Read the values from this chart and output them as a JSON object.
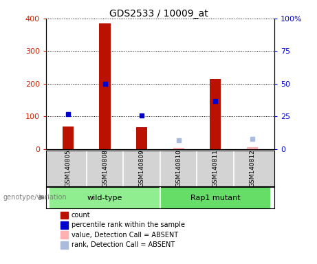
{
  "title": "GDS2533 / 10009_at",
  "samples": [
    "GSM140805",
    "GSM140808",
    "GSM140809",
    "GSM140810",
    "GSM140811",
    "GSM140812"
  ],
  "bar_color": "#BB1100",
  "dot_color_present": "#0000CC",
  "dot_color_absent_val": "#FFB0B0",
  "dot_color_absent_rank": "#AABBDD",
  "count_values": [
    70,
    385,
    68,
    5,
    215,
    7
  ],
  "rank_values": [
    27,
    50,
    26,
    null,
    37,
    null
  ],
  "absent_rank": [
    null,
    null,
    null,
    7,
    null,
    8
  ],
  "absent_value": [
    null,
    null,
    null,
    5,
    null,
    7
  ],
  "detection_absent": [
    false,
    false,
    false,
    true,
    false,
    true
  ],
  "ylim_left": [
    0,
    400
  ],
  "ylim_right": [
    0,
    100
  ],
  "yticks_left": [
    0,
    100,
    200,
    300,
    400
  ],
  "ytick_labels_left": [
    "0",
    "100",
    "200",
    "300",
    "400"
  ],
  "ytick_labels_right": [
    "0",
    "25",
    "50",
    "75",
    "100%"
  ],
  "ylabel_left_color": "#CC2200",
  "ylabel_right_color": "#0000CC",
  "title_fontsize": 10,
  "sample_bg_color": "#D3D3D3",
  "group_bg_color_wt": "#90EE90",
  "group_bg_color_rap": "#66DD66",
  "legend_labels": [
    "count",
    "percentile rank within the sample",
    "value, Detection Call = ABSENT",
    "rank, Detection Call = ABSENT"
  ],
  "legend_colors": [
    "#BB1100",
    "#0000CC",
    "#FFB0B0",
    "#AABBDD"
  ],
  "genotype_label": "genotype/variation"
}
